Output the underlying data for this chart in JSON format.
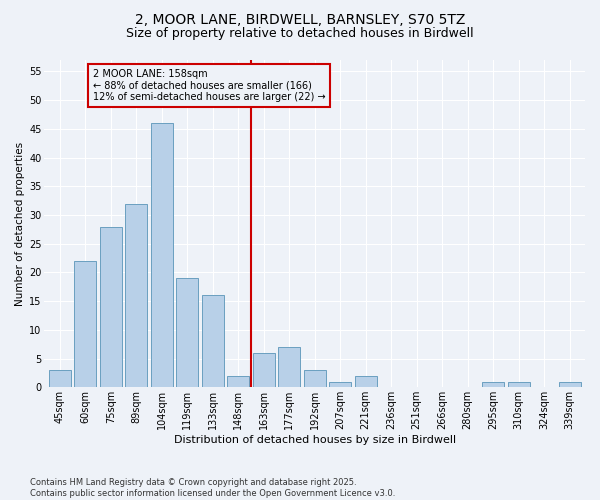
{
  "title1": "2, MOOR LANE, BIRDWELL, BARNSLEY, S70 5TZ",
  "title2": "Size of property relative to detached houses in Birdwell",
  "xlabel": "Distribution of detached houses by size in Birdwell",
  "ylabel": "Number of detached properties",
  "categories": [
    "45sqm",
    "60sqm",
    "75sqm",
    "89sqm",
    "104sqm",
    "119sqm",
    "133sqm",
    "148sqm",
    "163sqm",
    "177sqm",
    "192sqm",
    "207sqm",
    "221sqm",
    "236sqm",
    "251sqm",
    "266sqm",
    "280sqm",
    "295sqm",
    "310sqm",
    "324sqm",
    "339sqm"
  ],
  "values": [
    3,
    22,
    28,
    32,
    46,
    19,
    16,
    2,
    6,
    7,
    3,
    1,
    2,
    0,
    0,
    0,
    0,
    1,
    1,
    0,
    1
  ],
  "bar_color": "#b8d0e8",
  "bar_edge_color": "#6a9fc0",
  "vline_x_idx": 7.5,
  "vline_color": "#cc0000",
  "annotation_title": "2 MOOR LANE: 158sqm",
  "annotation_line1": "← 88% of detached houses are smaller (166)",
  "annotation_line2": "12% of semi-detached houses are larger (22) →",
  "annotation_box_color": "#cc0000",
  "ylim": [
    0,
    57
  ],
  "yticks": [
    0,
    5,
    10,
    15,
    20,
    25,
    30,
    35,
    40,
    45,
    50,
    55
  ],
  "footnote1": "Contains HM Land Registry data © Crown copyright and database right 2025.",
  "footnote2": "Contains public sector information licensed under the Open Government Licence v3.0.",
  "bg_color": "#eef2f8",
  "title1_fontsize": 10,
  "title2_fontsize": 9,
  "bar_fontsize": 7,
  "axis_fontsize": 7,
  "ylabel_fontsize": 7.5,
  "xlabel_fontsize": 8,
  "annot_fontsize": 7,
  "footnote_fontsize": 6
}
